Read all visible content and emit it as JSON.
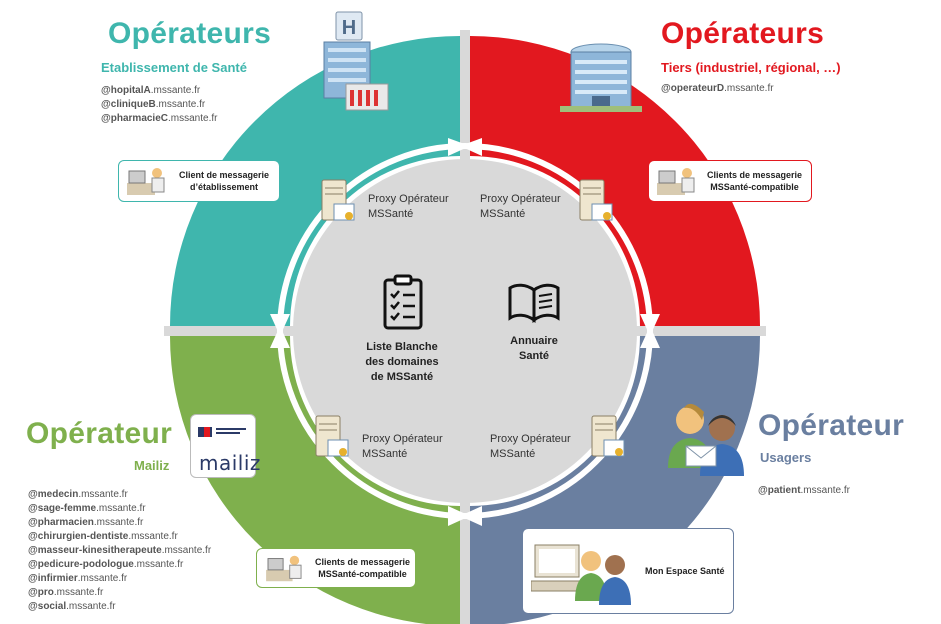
{
  "quadrants": {
    "top_left": {
      "title": "Opérateurs",
      "subtitle": "Etablissement de Santé",
      "addresses": [
        {
          "bold": "@hopitalA",
          "rest": ".mssante.fr"
        },
        {
          "bold": "@cliniqueB",
          "rest": ".mssante.fr"
        },
        {
          "bold": "@pharmacieC",
          "rest": ".mssante.fr"
        }
      ],
      "client_label": "Client de messagerie\nd’établissement",
      "proxy_label": "Proxy Opérateur\nMSSanté",
      "color": "#3fb6ad"
    },
    "top_right": {
      "title": "Opérateurs",
      "subtitle": "Tiers (industriel, régional, …)",
      "addresses": [
        {
          "bold": "@operateurD",
          "rest": ".mssante.fr"
        }
      ],
      "client_label": "Clients de messagerie\nMSSanté-compatible",
      "proxy_label": "Proxy Opérateur\nMSSanté",
      "color": "#e2181f"
    },
    "bottom_left": {
      "title": "Opérateur",
      "subtitle": "Mailiz",
      "addresses": [
        {
          "bold": "@medecin",
          "rest": ".mssante.fr"
        },
        {
          "bold": "@sage-femme",
          "rest": ".mssante.fr"
        },
        {
          "bold": "@pharmacien",
          "rest": ".mssante.fr"
        },
        {
          "bold": "@chirurgien-dentiste",
          "rest": ".mssante.fr"
        },
        {
          "bold": "@masseur-kinesitherapeute",
          "rest": ".mssante.fr"
        },
        {
          "bold": "@pedicure-podologue",
          "rest": ".mssante.fr"
        },
        {
          "bold": "@infirmier",
          "rest": ".mssante.fr"
        },
        {
          "bold": "@pro",
          "rest": ".mssante.fr"
        },
        {
          "bold": "@social",
          "rest": ".mssante.fr"
        }
      ],
      "client_label": "Clients de messagerie\nMSSanté-compatible",
      "proxy_label": "Proxy Opérateur\nMSSanté",
      "logo_word": "mailiz",
      "color": "#7fb04d"
    },
    "bottom_right": {
      "title": "Opérateur",
      "subtitle": "Usagers",
      "addresses": [
        {
          "bold": "@patient",
          "rest": ".mssante.fr"
        }
      ],
      "client_label": "Mon Espace Santé",
      "proxy_label": "Proxy Opérateur\nMSSanté",
      "color": "#6a7fa0"
    }
  },
  "center": {
    "whitelist_label": "Liste Blanche\ndes domaines\nde MSSanté",
    "directory_label": "Annuaire\nSanté"
  },
  "icons": {
    "hospital_top_left": "hospital-building-icon",
    "building_top_right": "office-building-icon",
    "users_bottom_right": "users-mail-icon",
    "checklist": "clipboard-checklist-icon",
    "book": "open-book-icon",
    "server": "server-certificate-icon",
    "client": "doctor-workstation-icon",
    "mon_espace": "patient-computer-icon"
  }
}
